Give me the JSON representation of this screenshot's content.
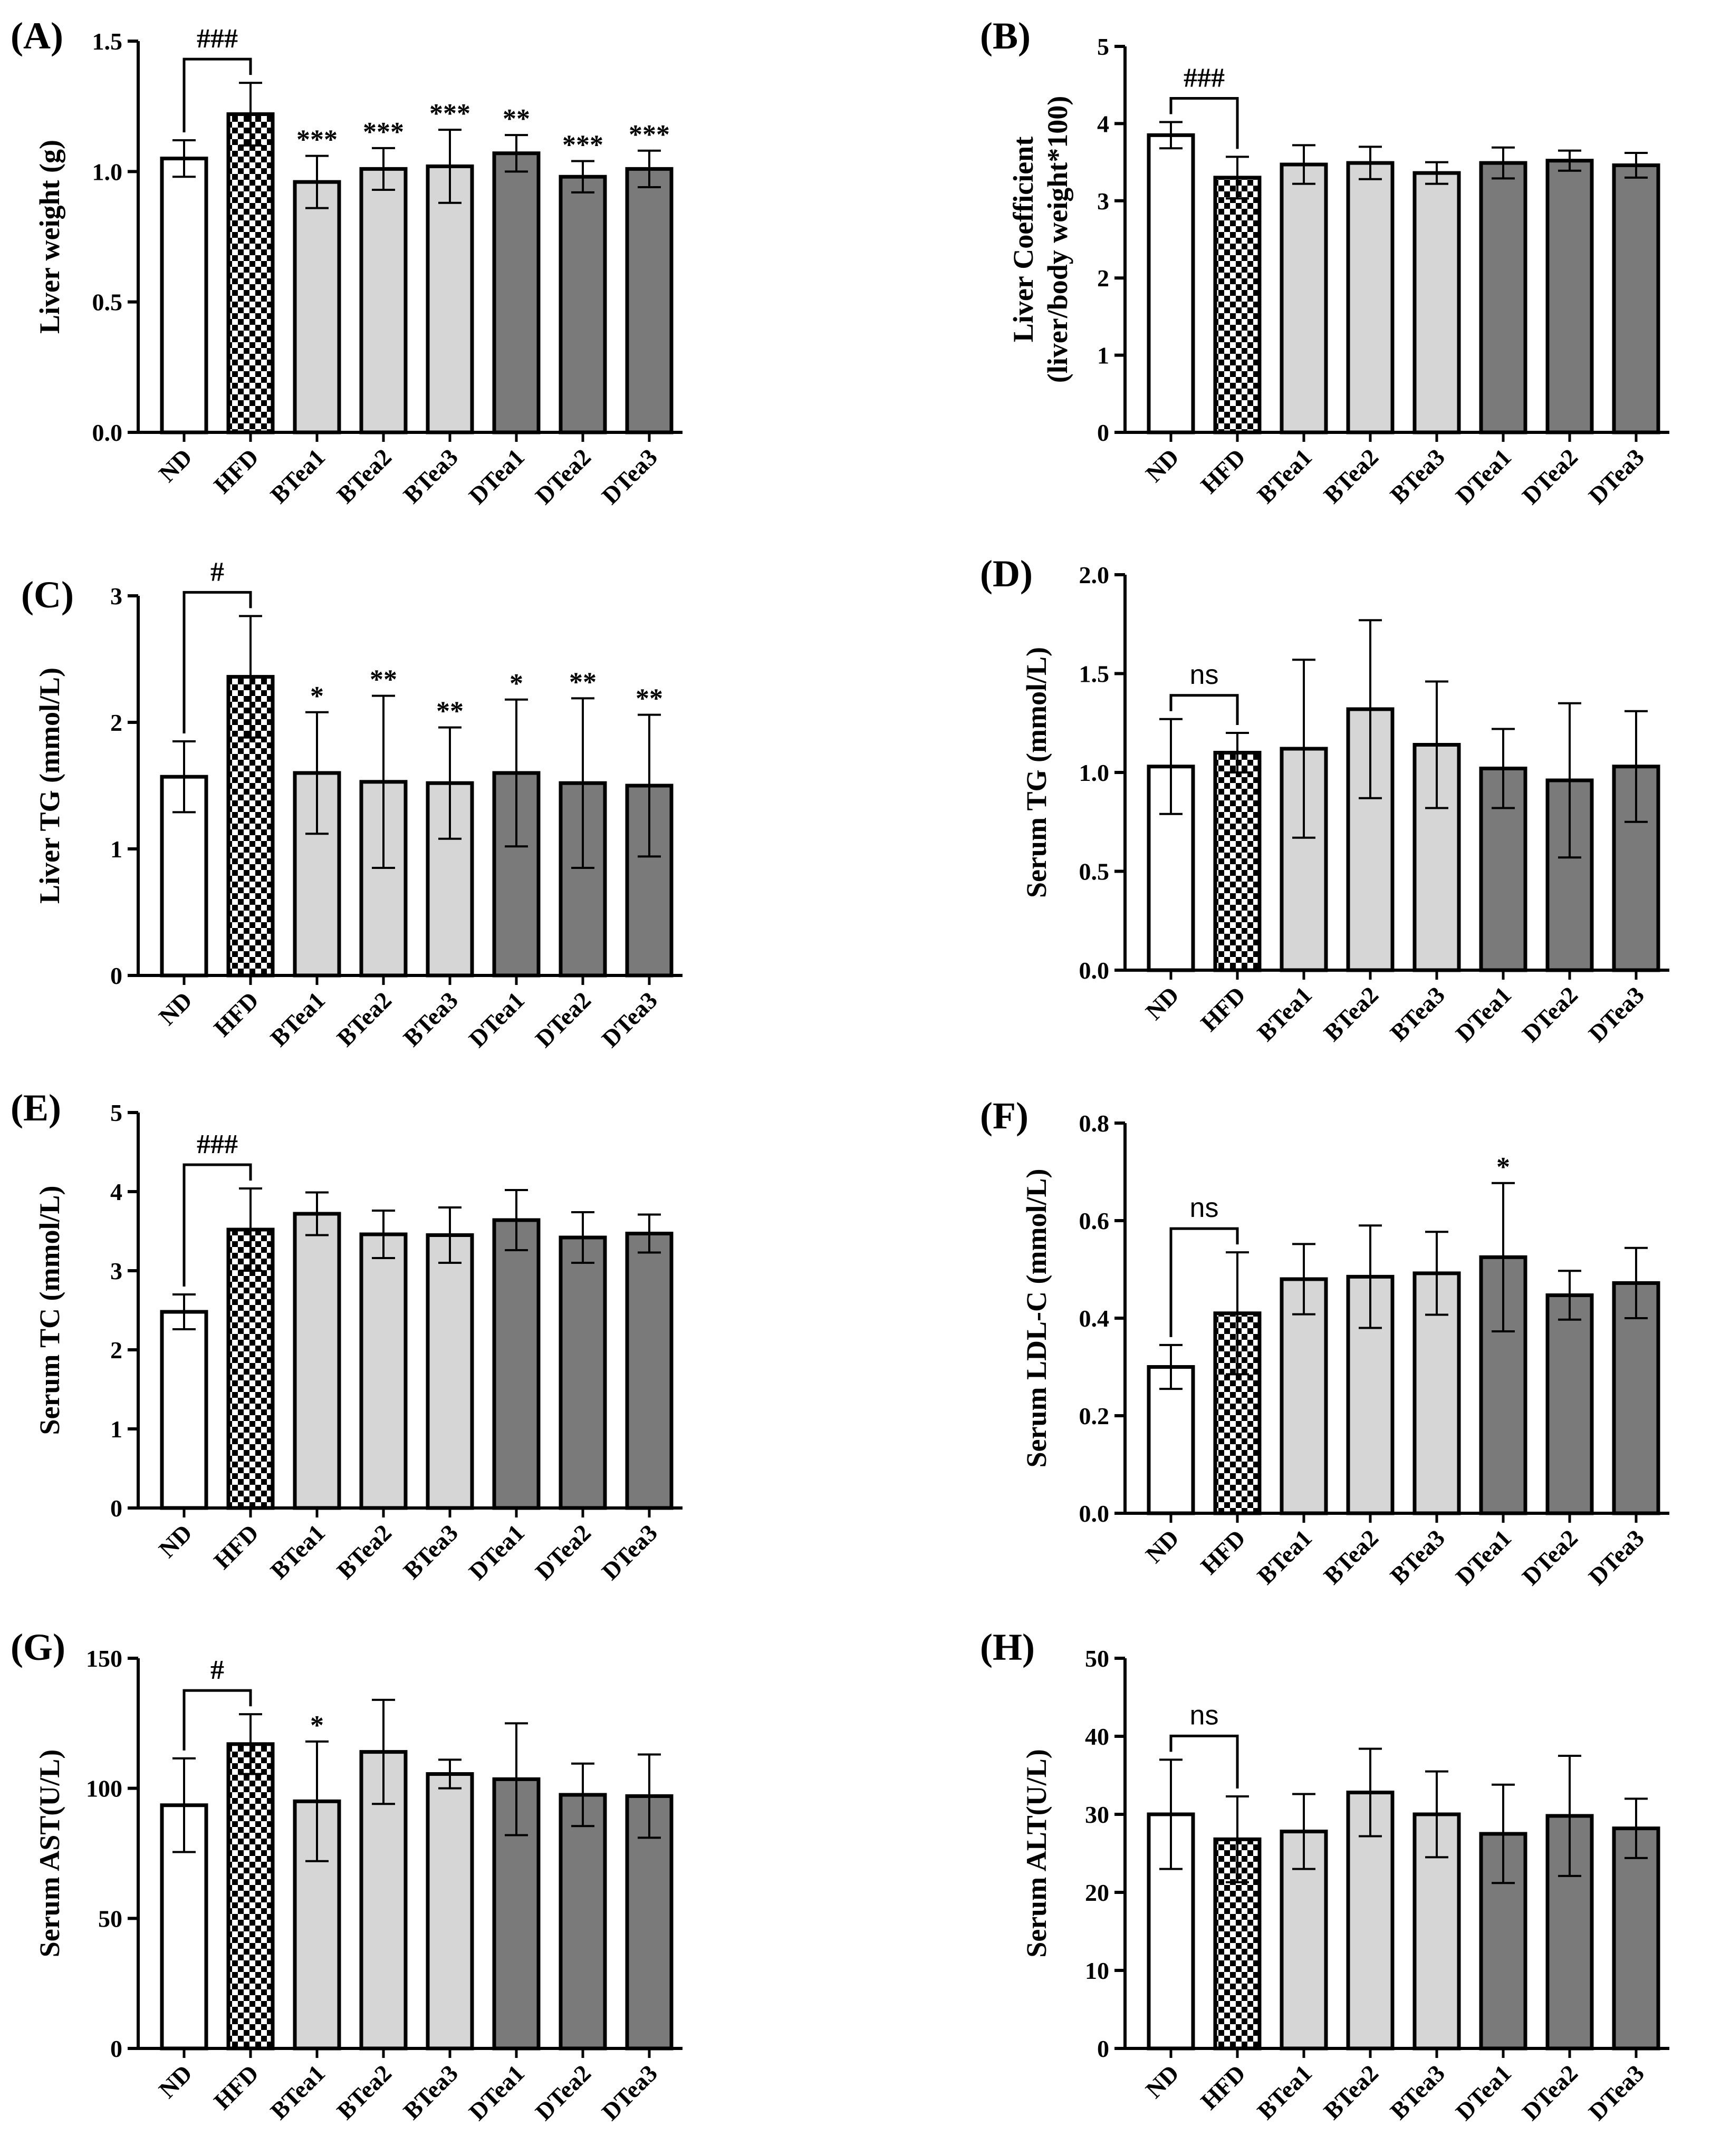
{
  "colors": {
    "ND": "#ffffff",
    "BTea": "#d6d6d6",
    "DTea": "#7a7a7a",
    "stroke": "#000000"
  },
  "chart_data": [
    {
      "type": "bar",
      "panel": "(A)",
      "ylabel": "Liver weight (g)",
      "ylabel2": "",
      "ylim": [
        0,
        1.5
      ],
      "yticks": [
        "0.0",
        "0.5",
        "1.0",
        "1.5"
      ],
      "categories": [
        "ND",
        "HFD",
        "BTea1",
        "BTea2",
        "BTea3",
        "DTea1",
        "DTea2",
        "DTea3"
      ],
      "values": [
        1.05,
        1.22,
        0.96,
        1.01,
        1.02,
        1.07,
        0.98,
        1.01
      ],
      "errors": [
        0.07,
        0.12,
        0.1,
        0.08,
        0.14,
        0.07,
        0.06,
        0.07
      ],
      "annotations": [
        "",
        "",
        "***",
        "***",
        "***",
        "**",
        "***",
        "***"
      ],
      "bracket": {
        "label": "###",
        "from": 0,
        "to": 1
      }
    },
    {
      "type": "bar",
      "panel": "(B)",
      "ylabel": "Liver Coefficient",
      "ylabel2": "(liver/body weight*100)",
      "ylim": [
        0,
        5
      ],
      "yticks": [
        "0",
        "1",
        "2",
        "3",
        "4",
        "5"
      ],
      "categories": [
        "ND",
        "HFD",
        "BTea1",
        "BTea2",
        "BTea3",
        "DTea1",
        "DTea2",
        "DTea3"
      ],
      "values": [
        3.85,
        3.3,
        3.47,
        3.49,
        3.36,
        3.49,
        3.52,
        3.46
      ],
      "errors": [
        0.17,
        0.27,
        0.25,
        0.21,
        0.14,
        0.2,
        0.13,
        0.16
      ],
      "annotations": [
        "",
        "",
        "",
        "",
        "",
        "",
        "",
        ""
      ],
      "bracket": {
        "label": "###",
        "from": 0,
        "to": 1
      }
    },
    {
      "type": "bar",
      "panel": "(C)",
      "ylabel": "Liver TG (mmol/L)",
      "ylabel2": "",
      "ylim": [
        0,
        3
      ],
      "yticks": [
        "0",
        "1",
        "2",
        "3"
      ],
      "categories": [
        "ND",
        "HFD",
        "BTea1",
        "BTea2",
        "BTea3",
        "DTea1",
        "DTea2",
        "DTea3"
      ],
      "values": [
        1.57,
        2.36,
        1.6,
        1.53,
        1.52,
        1.6,
        1.52,
        1.5
      ],
      "errors": [
        0.28,
        0.48,
        0.48,
        0.68,
        0.44,
        0.58,
        0.67,
        0.56
      ],
      "annotations": [
        "",
        "",
        "*",
        "**",
        "**",
        "*",
        "**",
        "**"
      ],
      "bracket": {
        "label": "#",
        "from": 0,
        "to": 1
      }
    },
    {
      "type": "bar",
      "panel": "(D)",
      "ylabel": "Serum TG (mmol/L)",
      "ylabel2": "",
      "ylim": [
        0,
        2.0
      ],
      "yticks": [
        "0.0",
        "0.5",
        "1.0",
        "1.5",
        "2.0"
      ],
      "categories": [
        "ND",
        "HFD",
        "BTea1",
        "BTea2",
        "BTea3",
        "DTea1",
        "DTea2",
        "DTea3"
      ],
      "values": [
        1.03,
        1.1,
        1.12,
        1.32,
        1.14,
        1.02,
        0.96,
        1.03
      ],
      "errors": [
        0.24,
        0.1,
        0.45,
        0.45,
        0.32,
        0.2,
        0.39,
        0.28
      ],
      "annotations": [
        "",
        "",
        "",
        "",
        "",
        "",
        "",
        ""
      ],
      "bracket": {
        "label": "ns",
        "from": 0,
        "to": 1
      }
    },
    {
      "type": "bar",
      "panel": "(E)",
      "ylabel": "Serum TC (mmol/L)",
      "ylabel2": "",
      "ylim": [
        0,
        5
      ],
      "yticks": [
        "0",
        "1",
        "2",
        "3",
        "4",
        "5"
      ],
      "categories": [
        "ND",
        "HFD",
        "BTea1",
        "BTea2",
        "BTea3",
        "DTea1",
        "DTea2",
        "DTea3"
      ],
      "values": [
        2.48,
        3.52,
        3.72,
        3.46,
        3.45,
        3.64,
        3.42,
        3.47
      ],
      "errors": [
        0.22,
        0.52,
        0.27,
        0.3,
        0.35,
        0.38,
        0.32,
        0.24
      ],
      "annotations": [
        "",
        "",
        "",
        "",
        "",
        "",
        "",
        ""
      ],
      "bracket": {
        "label": "###",
        "from": 0,
        "to": 1
      }
    },
    {
      "type": "bar",
      "panel": "(F)",
      "ylabel": "Serum LDL-C (mmol/L)",
      "ylabel2": "",
      "ylim": [
        0,
        0.8
      ],
      "yticks": [
        "0.0",
        "0.2",
        "0.4",
        "0.6",
        "0.8"
      ],
      "categories": [
        "ND",
        "HFD",
        "BTea1",
        "BTea2",
        "BTea3",
        "DTea1",
        "DTea2",
        "DTea3"
      ],
      "values": [
        0.3,
        0.41,
        0.48,
        0.485,
        0.492,
        0.525,
        0.447,
        0.472
      ],
      "errors": [
        0.045,
        0.125,
        0.072,
        0.105,
        0.085,
        0.152,
        0.05,
        0.072
      ],
      "annotations": [
        "",
        "",
        "",
        "",
        "",
        "*",
        "",
        ""
      ],
      "bracket": {
        "label": "ns",
        "from": 0,
        "to": 1
      }
    },
    {
      "type": "bar",
      "panel": "(G)",
      "ylabel": "Serum AST(U/L)",
      "ylabel2": "",
      "ylim": [
        0,
        150
      ],
      "yticks": [
        "0",
        "50",
        "100",
        "150"
      ],
      "categories": [
        "ND",
        "HFD",
        "BTea1",
        "BTea2",
        "BTea3",
        "DTea1",
        "DTea2",
        "DTea3"
      ],
      "values": [
        93.5,
        117,
        95,
        114,
        105.5,
        103.5,
        97.5,
        97
      ],
      "errors": [
        18,
        11.5,
        23,
        20,
        5.5,
        21.5,
        12,
        16
      ],
      "annotations": [
        "",
        "",
        "*",
        "",
        "",
        "",
        "",
        ""
      ],
      "bracket": {
        "label": "#",
        "from": 0,
        "to": 1
      }
    },
    {
      "type": "bar",
      "panel": "(H)",
      "ylabel": "Serum ALT(U/L)",
      "ylabel2": "",
      "ylim": [
        0,
        50
      ],
      "yticks": [
        "0",
        "10",
        "20",
        "30",
        "40",
        "50"
      ],
      "categories": [
        "ND",
        "HFD",
        "BTea1",
        "BTea2",
        "BTea3",
        "DTea1",
        "DTea2",
        "DTea3"
      ],
      "values": [
        30,
        26.8,
        27.8,
        32.8,
        30,
        27.5,
        29.8,
        28.2
      ],
      "errors": [
        7,
        5.5,
        4.8,
        5.6,
        5.5,
        6.3,
        7.7,
        3.8
      ],
      "annotations": [
        "",
        "",
        "",
        "",
        "",
        "",
        "",
        ""
      ],
      "bracket": {
        "label": "ns",
        "from": 0,
        "to": 1
      }
    }
  ]
}
